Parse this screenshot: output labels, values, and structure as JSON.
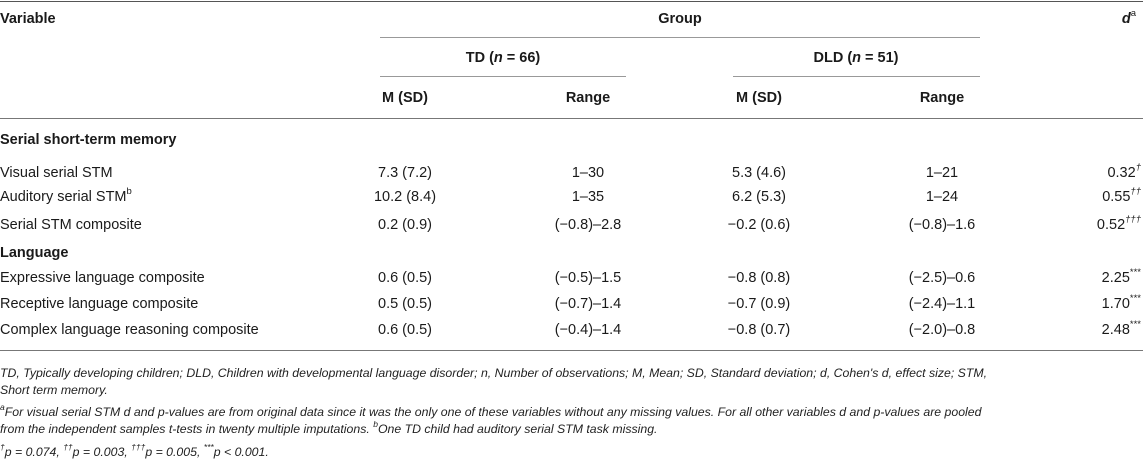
{
  "table": {
    "header": {
      "variable": "Variable",
      "group": "Group",
      "d_label": "d",
      "d_sup": "a",
      "td_group": {
        "name": "TD (",
        "n_var": "n",
        "n_rest": " = 66)"
      },
      "dld_group": {
        "name": "DLD (",
        "n_var": "n",
        "n_rest": " = 51)"
      },
      "td_msd": "M (SD)",
      "td_range": "Range",
      "dld_msd": "M (SD)",
      "dld_range": "Range"
    },
    "sections": [
      {
        "title": "Serial short-term memory",
        "rows": [
          {
            "variable": "Visual serial STM",
            "var_sup": "",
            "td_msd": "7.3 (7.2)",
            "td_range": "1–30",
            "dld_msd": "5.3 (4.6)",
            "dld_range": "1–21",
            "d": "0.32",
            "d_sup": "†"
          },
          {
            "variable": "Auditory serial STM",
            "var_sup": "b",
            "td_msd": "10.2 (8.4)",
            "td_range": "1–35",
            "dld_msd": "6.2 (5.3)",
            "dld_range": "1–24",
            "d": "0.55",
            "d_sup": "††"
          },
          {
            "variable": "Serial STM composite",
            "var_sup": "",
            "td_msd": "0.2 (0.9)",
            "td_range": "(−0.8)–2.8",
            "dld_msd": "−0.2 (0.6)",
            "dld_range": "(−0.8)–1.6",
            "d": "0.52",
            "d_sup": "†††"
          }
        ]
      },
      {
        "title": "Language",
        "rows": [
          {
            "variable": "Expressive language composite",
            "var_sup": "",
            "td_msd": "0.6 (0.5)",
            "td_range": "(−0.5)–1.5",
            "dld_msd": "−0.8 (0.8)",
            "dld_range": "(−2.5)–0.6",
            "d": "2.25",
            "d_sup": "***"
          },
          {
            "variable": "Receptive language composite",
            "var_sup": "",
            "td_msd": "0.5 (0.5)",
            "td_range": "(−0.7)–1.4",
            "dld_msd": "−0.7 (0.9)",
            "dld_range": "(−2.4)–1.1",
            "d": "1.70",
            "d_sup": "***"
          },
          {
            "variable": "Complex language reasoning composite",
            "var_sup": "",
            "td_msd": "0.6 (0.5)",
            "td_range": "(−0.4)–1.4",
            "dld_msd": "−0.8 (0.7)",
            "dld_range": "(−2.0)–0.8",
            "d": "2.48",
            "d_sup": "***"
          }
        ]
      }
    ]
  },
  "footnotes": {
    "abbrev_1": "TD, Typically developing children; DLD, Children with developmental language disorder; n, Number of observations; M, Mean; SD, Standard deviation; d, Cohen's d, effect size; STM,",
    "abbrev_2": "Short term memory.",
    "note_a_sup": "a",
    "note_a_1": "For visual serial STM d and p-values are from original data since it was the only one of these variables without any missing values. For all other variables d and p-values are pooled",
    "note_a_2": "from the independent samples t-tests in twenty multiple imputations. ",
    "note_b_sup": "b",
    "note_b": "One TD child had auditory serial STM task missing.",
    "p1_sup": "†",
    "p1": "p = 0.074, ",
    "p2_sup": "††",
    "p2": "p = 0.003, ",
    "p3_sup": "†††",
    "p3": "p = 0.005, ",
    "p4_sup": "***",
    "p4": "p < 0.001."
  }
}
